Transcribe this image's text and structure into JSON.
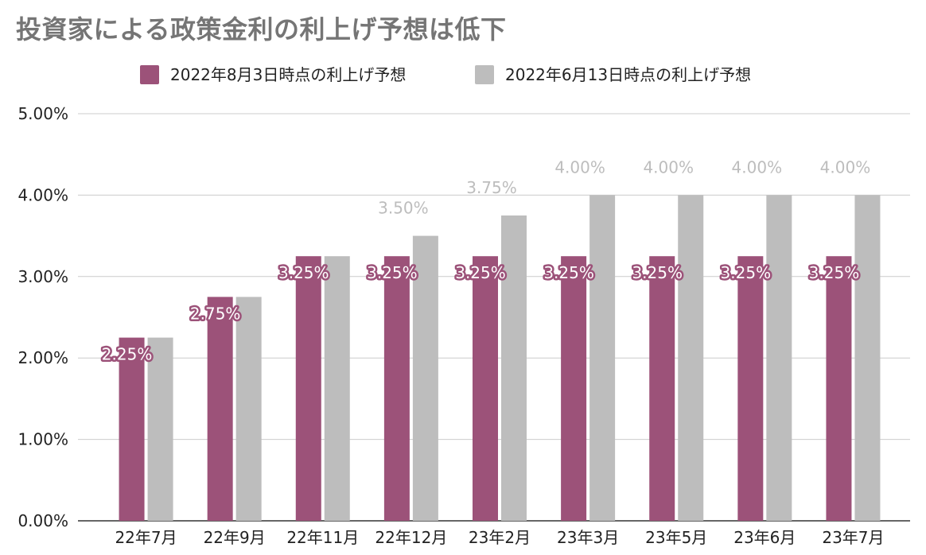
{
  "chart_data": {
    "type": "bar",
    "title": "投資家による政策金利の利上げ予想は低下",
    "xlabel": "",
    "ylabel": "",
    "categories": [
      "22年7月",
      "22年9月",
      "22年11月",
      "22年12月",
      "23年2月",
      "23年3月",
      "23年5月",
      "23年6月",
      "23年7月"
    ],
    "series": [
      {
        "name": "2022年8月3日時点の利上げ予想",
        "color": "#9c5279",
        "values": [
          2.25,
          2.75,
          3.25,
          3.25,
          3.25,
          3.25,
          3.25,
          3.25,
          3.25
        ],
        "labels": [
          "2.25%",
          "2.75%",
          "3.25%",
          "3.25%",
          "3.25%",
          "3.25%",
          "3.25%",
          "3.25%",
          "3.25%"
        ]
      },
      {
        "name": "2022年6月13日時点の利上げ予想",
        "color": "#bdbdbd",
        "values": [
          2.25,
          2.75,
          3.25,
          3.5,
          3.75,
          4.0,
          4.0,
          4.0,
          4.0
        ],
        "labels": [
          "",
          "",
          "",
          "3.50%",
          "3.75%",
          "4.00%",
          "4.00%",
          "4.00%",
          "4.00%"
        ]
      }
    ],
    "ylim": [
      0,
      5
    ],
    "yticks": [
      0,
      1,
      2,
      3,
      4,
      5
    ],
    "ytick_labels": [
      "0.00%",
      "1.00%",
      "2.00%",
      "3.00%",
      "4.00%",
      "5.00%"
    ],
    "grid": true,
    "legend_position": "top-center"
  }
}
